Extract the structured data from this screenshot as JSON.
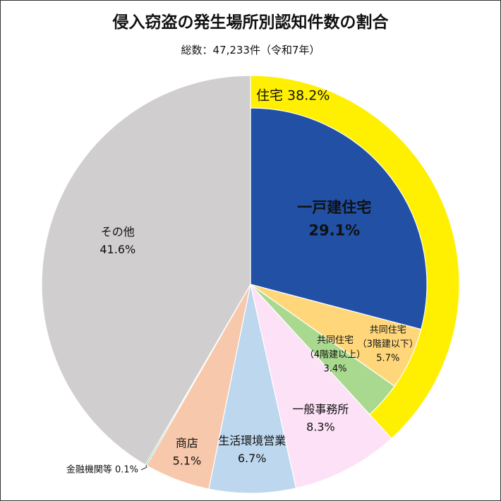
{
  "title": "侵入窃盗の発生場所別認知件数の割合",
  "subtitle": "総数：47,233件（令和7年）",
  "colors": {
    "jutaku_ring": "#ffef00",
    "ikko": "#2150a5",
    "kyodo_4": "#a9d98e",
    "kyodo_3": "#ffd77a",
    "jimusho": "#fde1f6",
    "seikatsu": "#bdd7ee",
    "shoten": "#f7c8ac",
    "kinyu": "#2aa47c",
    "sonota": "#d0cece"
  },
  "chart_data": {
    "type": "pie",
    "unit": "%",
    "outer_ring": {
      "name": "住宅",
      "label": "住宅 38.2%",
      "value": 38.2
    },
    "slices": [
      {
        "key": "ikko",
        "name": "一戸建住宅",
        "value": 29.1,
        "value_label": "29.1%"
      },
      {
        "key": "kyodo_3",
        "name": "共同住宅",
        "sub": "（3階建以下）",
        "value": 5.7,
        "value_label": "5.7%"
      },
      {
        "key": "kyodo_4",
        "name": "共同住宅",
        "sub": "（4階建以上）",
        "value": 3.4,
        "value_label": "3.4%"
      },
      {
        "key": "jimusho",
        "name": "一般事務所",
        "value": 8.3,
        "value_label": "8.3%"
      },
      {
        "key": "seikatsu",
        "name": "生活環境営業",
        "value": 6.7,
        "value_label": "6.7%"
      },
      {
        "key": "shoten",
        "name": "商店",
        "value": 5.1,
        "value_label": "5.1%"
      },
      {
        "key": "kinyu",
        "name": "金融機関等",
        "value": 0.1,
        "value_label": "0.1%"
      },
      {
        "key": "sonota",
        "name": "その他",
        "value": 41.6,
        "value_label": "41.6%"
      }
    ]
  }
}
